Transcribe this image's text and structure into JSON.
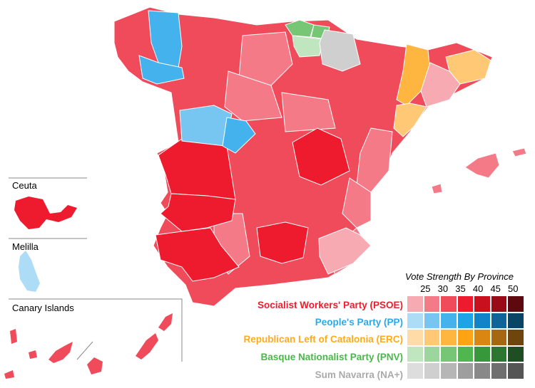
{
  "insets": {
    "ceuta": "Ceuta",
    "melilla": "Melilla",
    "canary": "Canary Islands"
  },
  "legend": {
    "title": "Vote Strength By Province",
    "ticks": [
      "25",
      "30",
      "35",
      "40",
      "45",
      "50"
    ],
    "parties": [
      {
        "name": "Socialist Workers' Party (PSOE)",
        "color": "#e8202e",
        "scale": [
          "#f7aab2",
          "#f57a88",
          "#f04b5b",
          "#ee1b2e",
          "#c8101f",
          "#9a0b18",
          "#5e0810"
        ]
      },
      {
        "name": "People's Party (PP)",
        "color": "#2ba8e8",
        "scale": [
          "#acdcf6",
          "#77c6f1",
          "#44b2ec",
          "#1ea3e6",
          "#1184c9",
          "#0f6597",
          "#0b4565"
        ]
      },
      {
        "name": "Republican Left of Catalonia (ERC)",
        "color": "#ffaa1e",
        "scale": [
          "#fedba7",
          "#fec874",
          "#feb641",
          "#fea314",
          "#d98612",
          "#a56711",
          "#6e460d"
        ]
      },
      {
        "name": "Basque Nationalist Party (PNV)",
        "color": "#4ab74a",
        "scale": [
          "#bfe6bf",
          "#9dd69c",
          "#77c676",
          "#50b650",
          "#36983a",
          "#2b7630",
          "#1e4e21"
        ]
      },
      {
        "name": "Sum Navarra (NA+)",
        "color": "#aaaaaa",
        "scale": [
          "#dddddd",
          "#cfcfcf",
          "#b6b6b6",
          "#9e9e9e",
          "#888888",
          "#6f6f6f",
          "#555555"
        ]
      }
    ]
  }
}
